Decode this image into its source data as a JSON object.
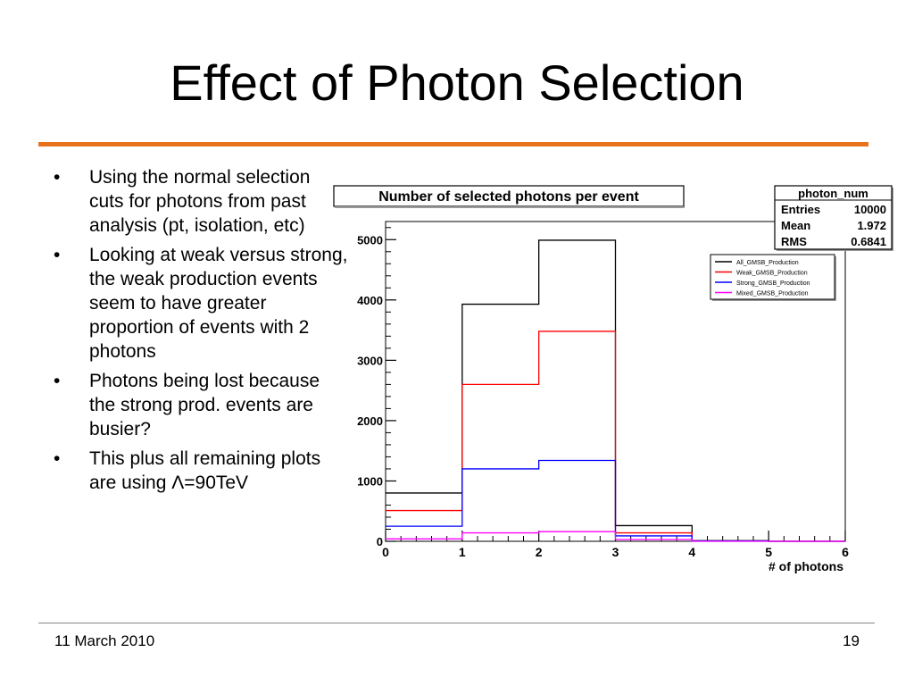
{
  "slide": {
    "title": "Effect of Photon Selection",
    "bullets": [
      "Using the normal selection cuts for photons from past analysis (pt, isolation, etc)",
      "Looking at weak versus strong, the weak production events seem to have greater proportion of events with 2 photons",
      "Photons being lost because the strong prod. events are busier?",
      "This plus all remaining plots are using Λ=90TeV"
    ],
    "bullet_marker": "•",
    "footer_date": "11 March 2010",
    "page_number": "19",
    "accent_color": "#e8721c"
  },
  "chart_data": {
    "type": "histogram",
    "title": "Number of selected photons per event",
    "xlabel": "# of photons",
    "ylabel": "",
    "xlim": [
      0,
      6
    ],
    "ylim": [
      0,
      5300
    ],
    "x_ticks": [
      0,
      1,
      2,
      3,
      4,
      5,
      6
    ],
    "y_ticks": [
      0,
      1000,
      2000,
      3000,
      4000,
      5000
    ],
    "bin_edges": [
      0,
      1,
      2,
      3,
      4,
      5,
      6
    ],
    "series": [
      {
        "name": "All_GMSB_Production",
        "color": "#000000",
        "values": [
          800,
          3930,
          4990,
          260,
          10,
          0
        ]
      },
      {
        "name": "Weak_GMSB_Production",
        "color": "#ff0000",
        "values": [
          510,
          2600,
          3480,
          140,
          5,
          0
        ]
      },
      {
        "name": "Strong_GMSB_Production",
        "color": "#0000ff",
        "values": [
          250,
          1200,
          1340,
          90,
          5,
          0
        ]
      },
      {
        "name": "Mixed_GMSB_Production",
        "color": "#ff00ff",
        "values": [
          40,
          140,
          160,
          30,
          0,
          0
        ]
      }
    ],
    "stats_box": {
      "name": "photon_num",
      "rows": [
        {
          "label": "Entries",
          "value": "10000"
        },
        {
          "label": "Mean",
          "value": "1.972"
        },
        {
          "label": "RMS",
          "value": "0.6841"
        }
      ]
    },
    "legend_position": "top-right",
    "grid": false
  }
}
